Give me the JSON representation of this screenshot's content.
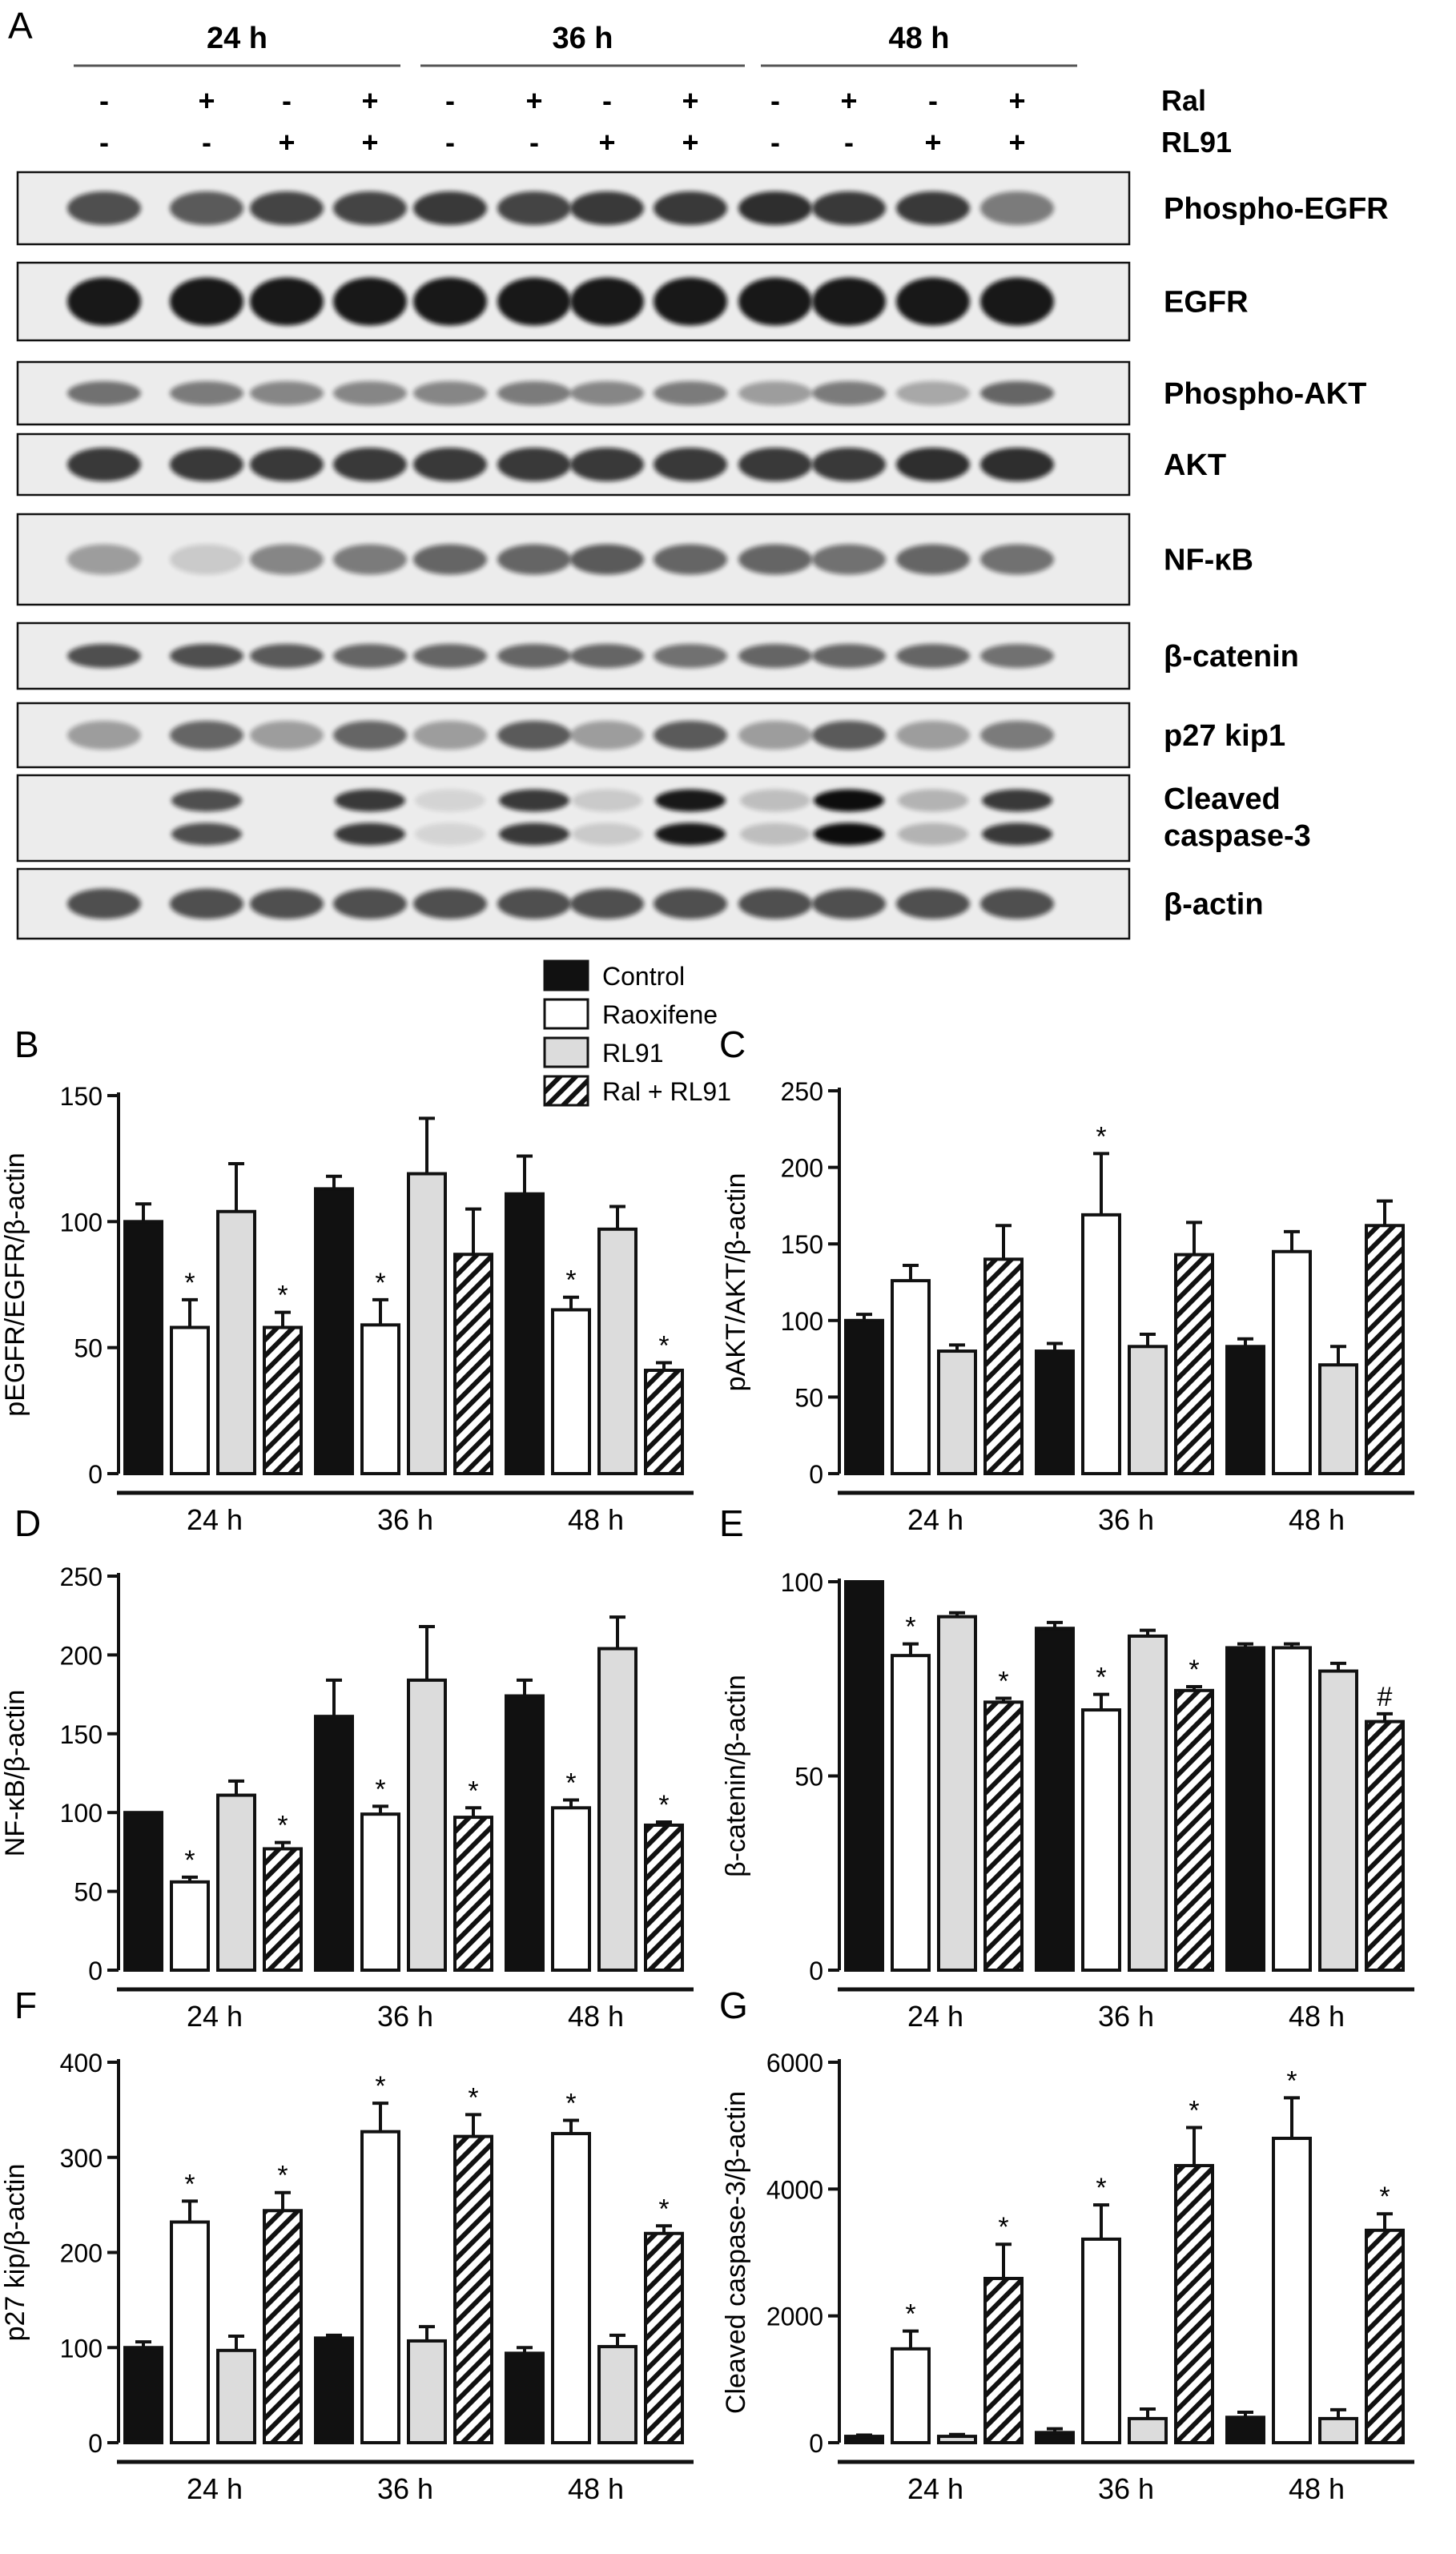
{
  "panel_letters": [
    "A",
    "B",
    "C",
    "D",
    "E",
    "F",
    "G"
  ],
  "blot": {
    "time_groups": [
      "24 h",
      "36 h",
      "48 h"
    ],
    "treatment_rows": [
      {
        "name": "Ral",
        "signs": [
          "-",
          "+",
          "-",
          "+",
          "-",
          "+",
          "-",
          "+",
          "-",
          "+",
          "-",
          "+"
        ]
      },
      {
        "name": "RL91",
        "signs": [
          "-",
          "-",
          "+",
          "+",
          "-",
          "-",
          "+",
          "+",
          "-",
          "-",
          "+",
          "+"
        ]
      }
    ],
    "rows": [
      {
        "label": "Phospho-EGFR",
        "bands": [
          0.7,
          0.65,
          0.75,
          0.75,
          0.8,
          0.75,
          0.8,
          0.8,
          0.85,
          0.8,
          0.8,
          0.5
        ]
      },
      {
        "label": "EGFR",
        "bands": [
          0.95,
          0.95,
          0.95,
          0.95,
          0.95,
          0.95,
          0.95,
          0.95,
          0.95,
          0.95,
          0.95,
          0.95
        ]
      },
      {
        "label": "Phospho-AKT",
        "bands": [
          0.55,
          0.5,
          0.45,
          0.45,
          0.45,
          0.5,
          0.45,
          0.5,
          0.35,
          0.5,
          0.3,
          0.6
        ]
      },
      {
        "label": "AKT",
        "bands": [
          0.8,
          0.8,
          0.8,
          0.8,
          0.8,
          0.8,
          0.8,
          0.8,
          0.8,
          0.8,
          0.85,
          0.85
        ]
      },
      {
        "label": "NF-κB",
        "bands": [
          0.35,
          0.15,
          0.45,
          0.5,
          0.6,
          0.6,
          0.65,
          0.6,
          0.6,
          0.55,
          0.6,
          0.55
        ]
      },
      {
        "label": "β-catenin",
        "bands": [
          0.7,
          0.7,
          0.65,
          0.6,
          0.6,
          0.6,
          0.6,
          0.55,
          0.6,
          0.6,
          0.6,
          0.55
        ]
      },
      {
        "label": "p27 kip1",
        "bands": [
          0.35,
          0.6,
          0.35,
          0.6,
          0.35,
          0.65,
          0.35,
          0.65,
          0.35,
          0.65,
          0.35,
          0.5
        ]
      },
      {
        "label_lines": [
          "Cleaved",
          "caspase-3"
        ],
        "bands": [
          0.0,
          0.7,
          0.0,
          0.8,
          0.1,
          0.8,
          0.15,
          0.95,
          0.2,
          1.0,
          0.25,
          0.8
        ]
      },
      {
        "label": "β-actin",
        "bands": [
          0.7,
          0.7,
          0.7,
          0.7,
          0.7,
          0.7,
          0.7,
          0.7,
          0.7,
          0.7,
          0.7,
          0.7
        ]
      }
    ]
  },
  "legend": {
    "entries": [
      {
        "label": "Control",
        "fill": "#111111"
      },
      {
        "label": "Raoxifene",
        "fill": "#ffffff"
      },
      {
        "label": "RL91",
        "fill": "#dcdcdc"
      },
      {
        "label": "Ral + RL91",
        "fill": "hatch"
      }
    ]
  },
  "chart_data": [
    {
      "panel": "B",
      "type": "bar",
      "ylabel": "pEGFR/EGFR/β-actin",
      "ylim": [
        0,
        150
      ],
      "yticks": [
        0,
        50,
        100,
        150
      ],
      "groups": [
        "24 h",
        "36 h",
        "48 h"
      ],
      "series": [
        {
          "name": "Control",
          "values": [
            100,
            113,
            111
          ],
          "errors": [
            7,
            5,
            15
          ],
          "marks": [
            "",
            "",
            ""
          ]
        },
        {
          "name": "Raoxifene",
          "values": [
            58,
            59,
            65
          ],
          "errors": [
            11,
            10,
            5
          ],
          "marks": [
            "*",
            "*",
            "*"
          ]
        },
        {
          "name": "RL91",
          "values": [
            104,
            119,
            97
          ],
          "errors": [
            19,
            22,
            9
          ],
          "marks": [
            "",
            "",
            ""
          ]
        },
        {
          "name": "Ral + RL91",
          "values": [
            58,
            87,
            41
          ],
          "errors": [
            6,
            18,
            3
          ],
          "marks": [
            "*",
            "",
            "*"
          ]
        }
      ]
    },
    {
      "panel": "C",
      "type": "bar",
      "ylabel": "pAKT/AKT/β-actin",
      "ylim": [
        0,
        250
      ],
      "yticks": [
        0,
        50,
        100,
        150,
        200,
        250
      ],
      "groups": [
        "24 h",
        "36 h",
        "48 h"
      ],
      "series": [
        {
          "name": "Control",
          "values": [
            100,
            80,
            83
          ],
          "errors": [
            4,
            5,
            5
          ],
          "marks": [
            "",
            "",
            ""
          ]
        },
        {
          "name": "Raoxifene",
          "values": [
            126,
            169,
            145
          ],
          "errors": [
            10,
            40,
            13
          ],
          "marks": [
            "",
            "*",
            ""
          ]
        },
        {
          "name": "RL91",
          "values": [
            80,
            83,
            71
          ],
          "errors": [
            4,
            8,
            12
          ],
          "marks": [
            "",
            "",
            ""
          ]
        },
        {
          "name": "Ral + RL91",
          "values": [
            140,
            143,
            162
          ],
          "errors": [
            22,
            21,
            16
          ],
          "marks": [
            "",
            "",
            ""
          ]
        }
      ]
    },
    {
      "panel": "D",
      "type": "bar",
      "ylabel": "NF-κB/β-actin",
      "ylim": [
        0,
        250
      ],
      "yticks": [
        0,
        50,
        100,
        150,
        200,
        250
      ],
      "groups": [
        "24 h",
        "36 h",
        "48 h"
      ],
      "series": [
        {
          "name": "Control",
          "values": [
            100,
            161,
            174
          ],
          "errors": [
            0,
            23,
            10
          ],
          "marks": [
            "",
            "",
            ""
          ]
        },
        {
          "name": "Raoxifene",
          "values": [
            56,
            99,
            103
          ],
          "errors": [
            3,
            5,
            5
          ],
          "marks": [
            "*",
            "*",
            "*"
          ]
        },
        {
          "name": "RL91",
          "values": [
            111,
            184,
            204
          ],
          "errors": [
            9,
            34,
            20
          ],
          "marks": [
            "",
            "",
            ""
          ]
        },
        {
          "name": "Ral + RL91",
          "values": [
            77,
            97,
            92
          ],
          "errors": [
            4,
            6,
            2
          ],
          "marks": [
            "*",
            "*",
            "*"
          ]
        }
      ]
    },
    {
      "panel": "E",
      "type": "bar",
      "ylabel": "β-catenin/β-actin",
      "ylim": [
        0,
        100
      ],
      "yticks": [
        0,
        50,
        100
      ],
      "groups": [
        "24 h",
        "36 h",
        "48 h"
      ],
      "series": [
        {
          "name": "Control",
          "values": [
            100,
            88,
            83
          ],
          "errors": [
            0,
            1.5,
            1
          ],
          "marks": [
            "",
            "",
            ""
          ]
        },
        {
          "name": "Raoxifene",
          "values": [
            81,
            67,
            83
          ],
          "errors": [
            3,
            4,
            1
          ],
          "marks": [
            "*",
            "*",
            ""
          ]
        },
        {
          "name": "RL91",
          "values": [
            91,
            86,
            77
          ],
          "errors": [
            1,
            1.5,
            2
          ],
          "marks": [
            "",
            "",
            ""
          ]
        },
        {
          "name": "Ral + RL91",
          "values": [
            69,
            72,
            64
          ],
          "errors": [
            1,
            1,
            2
          ],
          "marks": [
            "*",
            "*",
            "#"
          ]
        }
      ]
    },
    {
      "panel": "F",
      "type": "bar",
      "ylabel": "p27 kip/β-actin",
      "ylim": [
        0,
        400
      ],
      "yticks": [
        0,
        100,
        200,
        300,
        400
      ],
      "groups": [
        "24 h",
        "36 h",
        "48 h"
      ],
      "series": [
        {
          "name": "Control",
          "values": [
            100,
            110,
            94
          ],
          "errors": [
            6,
            3,
            6
          ],
          "marks": [
            "",
            "",
            ""
          ]
        },
        {
          "name": "Raoxifene",
          "values": [
            232,
            327,
            325
          ],
          "errors": [
            22,
            30,
            14
          ],
          "marks": [
            "*",
            "*",
            "*"
          ]
        },
        {
          "name": "RL91",
          "values": [
            97,
            107,
            101
          ],
          "errors": [
            15,
            15,
            12
          ],
          "marks": [
            "",
            "",
            ""
          ]
        },
        {
          "name": "Ral + RL91",
          "values": [
            244,
            322,
            220
          ],
          "errors": [
            19,
            23,
            8
          ],
          "marks": [
            "*",
            "*",
            "*"
          ]
        }
      ]
    },
    {
      "panel": "G",
      "type": "bar",
      "ylabel": "Cleaved caspase-3/β-actin",
      "ylim": [
        0,
        6000
      ],
      "yticks": [
        0,
        2000,
        4000,
        6000
      ],
      "groups": [
        "24 h",
        "36 h",
        "48 h"
      ],
      "series": [
        {
          "name": "Control",
          "values": [
            100,
            160,
            400
          ],
          "errors": [
            20,
            60,
            80
          ],
          "marks": [
            "",
            "",
            ""
          ]
        },
        {
          "name": "Raoxifene",
          "values": [
            1480,
            3210,
            4800
          ],
          "errors": [
            280,
            540,
            640
          ],
          "marks": [
            "*",
            "*",
            "*"
          ]
        },
        {
          "name": "RL91",
          "values": [
            100,
            380,
            380
          ],
          "errors": [
            30,
            150,
            140
          ],
          "marks": [
            "",
            "",
            ""
          ]
        },
        {
          "name": "Ral + RL91",
          "values": [
            2590,
            4370,
            3350
          ],
          "errors": [
            540,
            600,
            260
          ],
          "marks": [
            "*",
            "*",
            "*"
          ]
        }
      ]
    }
  ]
}
